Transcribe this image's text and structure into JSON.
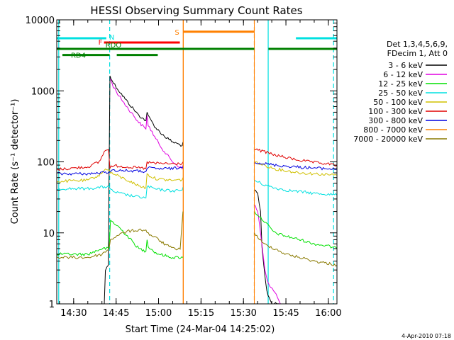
{
  "chart_data": {
    "type": "line",
    "title": "HESSI Observing Summary Count Rates",
    "xlabel": "Start Time (24-Mar-04 14:25:02)",
    "ylabel": "Count Rate (s⁻¹ detector⁻¹)",
    "x_unit": "minutes after 24-Mar-04 14:25:02",
    "xlim": [
      -1,
      98
    ],
    "ylim": [
      1,
      10000
    ],
    "yscale": "log",
    "x_ticks": [
      {
        "t": 4.97,
        "label": "14:30"
      },
      {
        "t": 19.97,
        "label": "14:45"
      },
      {
        "t": 34.97,
        "label": "15:00"
      },
      {
        "t": 49.97,
        "label": "15:15"
      },
      {
        "t": 64.97,
        "label": "15:30"
      },
      {
        "t": 79.97,
        "label": "15:45"
      },
      {
        "t": 94.97,
        "label": "16:00"
      }
    ],
    "y_ticks": [
      {
        "v": 1,
        "label": "1"
      },
      {
        "v": 10,
        "label": "10"
      },
      {
        "v": 100,
        "label": "100"
      },
      {
        "v": 1000,
        "label": "1000"
      },
      {
        "v": 10000,
        "label": "10000"
      }
    ],
    "legend": {
      "placement": "right",
      "header": [
        "Det 1,3,4,5,6,9,",
        "FDecim 1, Att 0"
      ],
      "entries": [
        {
          "label": "3 - 6 keV",
          "color": "#000000"
        },
        {
          "label": "6 - 12 keV",
          "color": "#e000e0"
        },
        {
          "label": "12 - 25 keV",
          "color": "#00e000"
        },
        {
          "label": "25 - 50 keV",
          "color": "#00e0e0"
        },
        {
          "label": "50 - 100 keV",
          "color": "#d0c000"
        },
        {
          "label": "100 - 300 keV",
          "color": "#e00000"
        },
        {
          "label": "300 - 800 keV",
          "color": "#0000e0"
        },
        {
          "label": "800 - 7000 keV",
          "color": "#ff8000"
        },
        {
          "label": "7000 - 20000 keV",
          "color": "#8a7a00"
        }
      ]
    },
    "flags": [
      {
        "name": "N",
        "color": "#00e0e0",
        "y": 5500,
        "segments": [
          [
            -1,
            16.5
          ],
          [
            83.5,
            98
          ]
        ]
      },
      {
        "name": "F",
        "color": "#ff0000",
        "y": 4800,
        "segments": [
          [
            15.7,
            42.5
          ]
        ]
      },
      {
        "name": "S",
        "color": "#ff8000",
        "y": 6800,
        "segments": [
          [
            43.7,
            68.8
          ]
        ]
      },
      {
        "name": "RDO",
        "color": "#008000",
        "y": 3900,
        "segments": [
          [
            -1,
            68.8
          ],
          [
            73.8,
            98
          ]
        ]
      },
      {
        "name": "RD4",
        "color": "#008000",
        "y": 3200,
        "segments": [
          [
            1,
            17.7
          ],
          [
            20.2,
            34.7
          ]
        ]
      }
    ],
    "vertical_lines": [
      {
        "t": -0.3,
        "color": "#00e0e0",
        "style": "solid"
      },
      {
        "t": 17.7,
        "color": "#00e0e0",
        "style": "dashed"
      },
      {
        "t": 43.7,
        "color": "#ff8000",
        "style": "solid"
      },
      {
        "t": 68.8,
        "color": "#ff8000",
        "style": "dashed"
      },
      {
        "t": 73.7,
        "color": "#00e0e0",
        "style": "solid"
      },
      {
        "t": 96.8,
        "color": "#00e0e0",
        "style": "dashed"
      }
    ],
    "data_gap": [
      43.7,
      68.8
    ],
    "series": [
      {
        "name": "3 - 6 keV",
        "color": "#000000",
        "segments": [
          [
            [
              15.8,
              1
            ],
            [
              16.2,
              3
            ],
            [
              17.2,
              3.5
            ],
            [
              17.8,
              1650
            ],
            [
              19,
              1300
            ],
            [
              21,
              1000
            ],
            [
              24,
              700
            ],
            [
              28,
              450
            ],
            [
              30.5,
              380
            ],
            [
              30.9,
              500
            ],
            [
              31.3,
              440
            ],
            [
              34,
              300
            ],
            [
              37,
              230
            ],
            [
              40,
              190
            ],
            [
              43.3,
              170
            ],
            [
              43.6,
              190
            ]
          ],
          [
            [
              68.8,
              40
            ],
            [
              70,
              35
            ],
            [
              71,
              20
            ],
            [
              71.5,
              6
            ],
            [
              72.5,
              2.5
            ],
            [
              73.2,
              1.5
            ],
            [
              75,
              1
            ],
            [
              78,
              1
            ]
          ]
        ]
      },
      {
        "name": "6 - 12 keV",
        "color": "#e000e0",
        "segments": [
          [
            [
              17.8,
              1500
            ],
            [
              19,
              1150
            ],
            [
              21,
              850
            ],
            [
              24,
              580
            ],
            [
              28,
              360
            ],
            [
              30.5,
              290
            ],
            [
              30.9,
              450
            ],
            [
              31.3,
              330
            ],
            [
              34,
              210
            ],
            [
              37,
              140
            ],
            [
              40,
              100
            ],
            [
              43.3,
              80
            ],
            [
              43.6,
              90
            ]
          ],
          [
            [
              68.8,
              25
            ],
            [
              70,
              20
            ],
            [
              71,
              10
            ],
            [
              72.5,
              3
            ],
            [
              73.5,
              2
            ],
            [
              76,
              1.5
            ],
            [
              78,
              1
            ]
          ]
        ]
      },
      {
        "name": "12 - 25 keV",
        "color": "#00e000",
        "segments": [
          [
            [
              -1,
              5
            ],
            [
              10,
              5
            ],
            [
              15,
              6
            ],
            [
              17.5,
              6
            ],
            [
              18,
              15
            ],
            [
              21,
              12
            ],
            [
              24,
              9
            ],
            [
              28,
              6
            ],
            [
              30.5,
              5.5
            ],
            [
              30.9,
              8
            ],
            [
              31.3,
              6.5
            ],
            [
              34,
              5.2
            ],
            [
              37,
              4.8
            ],
            [
              40,
              4.5
            ],
            [
              43.6,
              4.5
            ]
          ],
          [
            [
              68.8,
              20
            ],
            [
              72,
              15
            ],
            [
              76,
              10
            ],
            [
              80,
              9
            ],
            [
              85,
              8
            ],
            [
              90,
              7
            ],
            [
              95,
              6.5
            ],
            [
              98,
              6
            ]
          ]
        ]
      },
      {
        "name": "25 - 50 keV",
        "color": "#00e0e0",
        "segments": [
          [
            [
              -1,
              42
            ],
            [
              10,
              42
            ],
            [
              15,
              44
            ],
            [
              17.5,
              45
            ],
            [
              18,
              40
            ],
            [
              20,
              37
            ],
            [
              24,
              34
            ],
            [
              28,
              32
            ],
            [
              30.5,
              31
            ],
            [
              30.9,
              44
            ],
            [
              31.3,
              45
            ],
            [
              34,
              41
            ],
            [
              37,
              40
            ],
            [
              40,
              39
            ],
            [
              43.3,
              40
            ],
            [
              43.6,
              44
            ]
          ],
          [
            [
              68.8,
              55
            ],
            [
              72,
              48
            ],
            [
              76,
              43
            ],
            [
              80,
              40
            ],
            [
              85,
              38
            ],
            [
              90,
              36
            ],
            [
              95,
              35
            ],
            [
              98,
              34
            ]
          ]
        ]
      },
      {
        "name": "50 - 100 keV",
        "color": "#d0c000",
        "segments": [
          [
            [
              -1,
              53
            ],
            [
              10,
              55
            ],
            [
              14,
              65
            ],
            [
              16.2,
              78
            ],
            [
              17.3,
              80
            ],
            [
              18,
              70
            ],
            [
              20,
              65
            ],
            [
              24,
              55
            ],
            [
              28,
              46
            ],
            [
              30.5,
              43
            ],
            [
              30.9,
              68
            ],
            [
              31.3,
              65
            ],
            [
              34,
              58
            ],
            [
              37,
              56
            ],
            [
              40,
              55
            ],
            [
              43.3,
              56
            ],
            [
              43.6,
              60
            ]
          ],
          [
            [
              68.8,
              100
            ],
            [
              72,
              90
            ],
            [
              76,
              80
            ],
            [
              80,
              75
            ],
            [
              85,
              70
            ],
            [
              90,
              68
            ],
            [
              95,
              66
            ],
            [
              98,
              65
            ]
          ]
        ]
      },
      {
        "name": "100 - 300 keV",
        "color": "#e00000",
        "segments": [
          [
            [
              -1,
              78
            ],
            [
              10,
              85
            ],
            [
              14,
              100
            ],
            [
              16.2,
              148
            ],
            [
              17.3,
              148
            ],
            [
              17.8,
              85
            ],
            [
              20,
              88
            ],
            [
              24,
              85
            ],
            [
              28,
              82
            ],
            [
              30.5,
              80
            ],
            [
              30.9,
              100
            ],
            [
              31.3,
              98
            ],
            [
              34,
              95
            ],
            [
              37,
              95
            ],
            [
              40,
              93
            ],
            [
              43.3,
              95
            ],
            [
              43.6,
              100
            ]
          ],
          [
            [
              68.8,
              150
            ],
            [
              72,
              140
            ],
            [
              76,
              125
            ],
            [
              80,
              115
            ],
            [
              85,
              105
            ],
            [
              90,
              98
            ],
            [
              95,
              93
            ],
            [
              98,
              90
            ]
          ]
        ]
      },
      {
        "name": "300 - 800 keV",
        "color": "#0000e0",
        "segments": [
          [
            [
              -1,
              68
            ],
            [
              10,
              68
            ],
            [
              15,
              70
            ],
            [
              17.5,
              72
            ],
            [
              18,
              75
            ],
            [
              21,
              76
            ],
            [
              24,
              75
            ],
            [
              28,
              74
            ],
            [
              30.5,
              73
            ],
            [
              30.9,
              80
            ],
            [
              31.3,
              82
            ],
            [
              34,
              80
            ],
            [
              37,
              80
            ],
            [
              40,
              81
            ],
            [
              43.3,
              82
            ],
            [
              43.6,
              86
            ]
          ],
          [
            [
              68.8,
              100
            ],
            [
              72,
              95
            ],
            [
              76,
              90
            ],
            [
              80,
              87
            ],
            [
              85,
              84
            ],
            [
              90,
              82
            ],
            [
              95,
              80
            ],
            [
              98,
              79
            ]
          ]
        ]
      },
      {
        "name": "800 - 7000 keV",
        "color": "#ff8000",
        "segments": [
          [
            [
              43.7,
              1
            ],
            [
              43.7,
              10000
            ]
          ],
          [
            [
              68.8,
              1
            ],
            [
              68.8,
              10000
            ]
          ]
        ]
      },
      {
        "name": "7000 - 20000 keV",
        "color": "#8a7a00",
        "segments": [
          [
            [
              -1,
              4.5
            ],
            [
              10,
              4.5
            ],
            [
              15,
              5
            ],
            [
              17.5,
              6
            ],
            [
              18,
              8
            ],
            [
              21,
              9.5
            ],
            [
              24,
              10.5
            ],
            [
              28,
              11
            ],
            [
              30.5,
              11
            ],
            [
              30.9,
              10
            ],
            [
              34,
              8.5
            ],
            [
              37,
              7
            ],
            [
              40,
              6
            ],
            [
              42.6,
              6
            ],
            [
              43.6,
              20
            ]
          ],
          [
            [
              68.8,
              10
            ],
            [
              72,
              7
            ],
            [
              76,
              6
            ],
            [
              80,
              5
            ],
            [
              85,
              4.5
            ],
            [
              90,
              4
            ],
            [
              95,
              3.7
            ],
            [
              98,
              3.5
            ]
          ]
        ]
      }
    ],
    "timestamp": "4-Apr-2010 07:18"
  }
}
